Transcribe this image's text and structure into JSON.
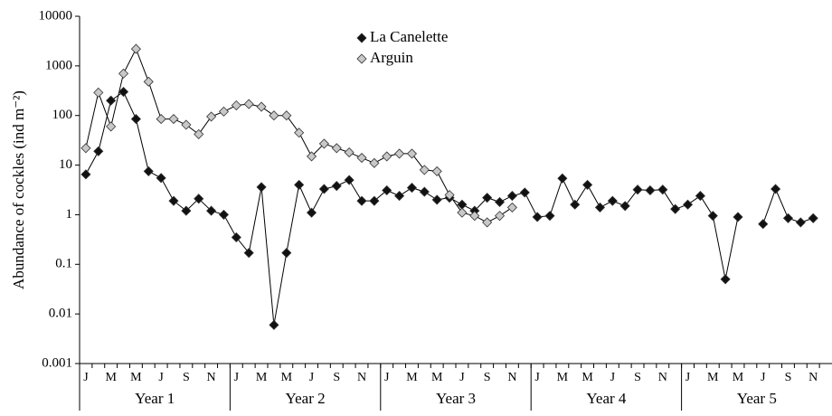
{
  "chart_data": {
    "type": "line",
    "y_label": "Abundance of cockles (ind m⁻²)",
    "log_scale": true,
    "ylim": [
      0.001,
      10000
    ],
    "yticks": [
      0.001,
      0.01,
      0.1,
      1,
      10,
      100,
      1000,
      10000
    ],
    "legend": "top",
    "categories": [
      "J",
      null,
      "M",
      null,
      "M",
      null,
      "J",
      null,
      "S",
      null,
      "N",
      null,
      "J",
      null,
      "M",
      null,
      "M",
      null,
      "J",
      null,
      "S",
      null,
      "N",
      null,
      "J",
      null,
      "M",
      null,
      "M",
      null,
      "J",
      null,
      "S",
      null,
      "N",
      null,
      "J",
      null,
      "M",
      null,
      "M",
      null,
      "J",
      null,
      "S",
      null,
      "N",
      null,
      "J",
      null,
      "M",
      null,
      "M",
      null,
      "J",
      null,
      "S",
      null,
      "N",
      null
    ],
    "years": [
      "Year 1",
      "Year 2",
      "Year 3",
      "Year 4",
      "Year 5"
    ],
    "series": [
      {
        "name": "La Canelette",
        "color": "#111111",
        "values": [
          6.5,
          19,
          200,
          300,
          85,
          7.5,
          5.5,
          1.9,
          1.2,
          2.1,
          1.2,
          1.0,
          0.35,
          0.17,
          3.6,
          0.006,
          0.17,
          4,
          1.1,
          3.3,
          3.8,
          5,
          1.9,
          1.9,
          3.1,
          2.4,
          3.5,
          2.9,
          2.0,
          2.2,
          1.6,
          1.2,
          2.2,
          1.8,
          2.4,
          2.8,
          0.9,
          0.95,
          5.4,
          1.6,
          4,
          1.4,
          1.9,
          1.5,
          3.2,
          3.1,
          3.2,
          1.3,
          1.6,
          2.4,
          0.95,
          0.05,
          0.9,
          null,
          0.65,
          3.3,
          0.85,
          0.7,
          0.85,
          null
        ]
      },
      {
        "name": "Arguin",
        "color": "#c8c8c8",
        "values": [
          22,
          290,
          60,
          700,
          2200,
          480,
          85,
          85,
          65,
          42,
          95,
          120,
          160,
          170,
          150,
          100,
          100,
          45,
          15,
          27,
          22,
          18,
          14,
          11,
          15,
          17,
          17,
          8,
          7.5,
          2.5,
          1.1,
          0.95,
          0.7,
          0.95,
          1.4,
          null,
          null,
          null,
          null,
          null,
          null,
          null,
          null,
          null,
          null,
          null,
          null,
          null,
          null,
          null,
          null,
          null,
          null,
          null,
          null,
          null,
          null,
          null,
          null,
          null
        ]
      }
    ]
  }
}
